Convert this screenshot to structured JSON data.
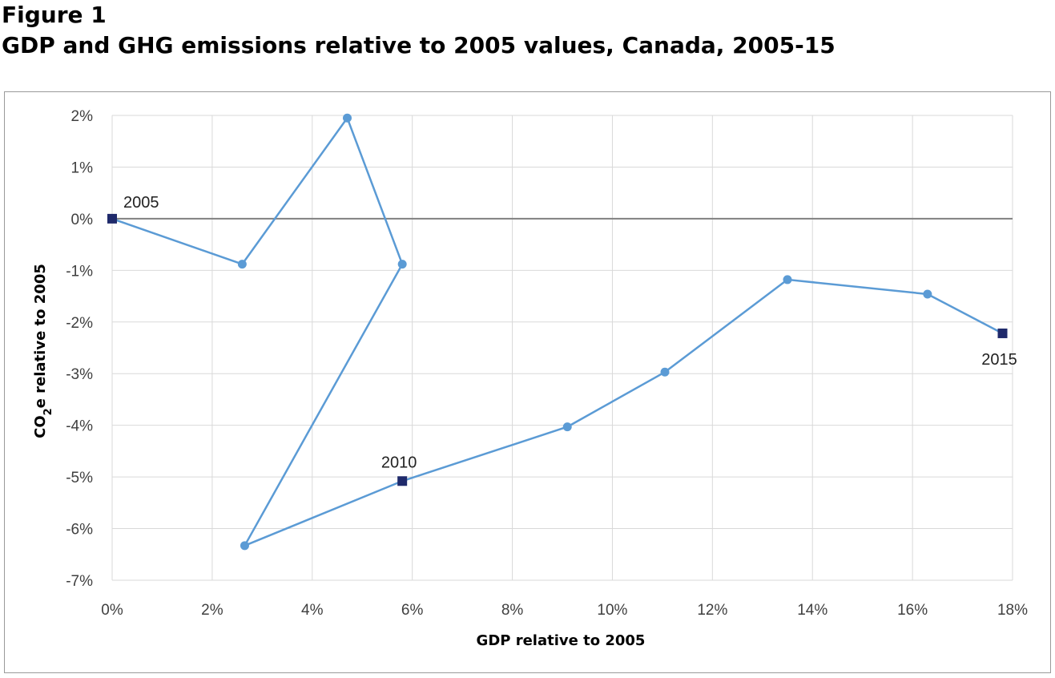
{
  "header": {
    "figure_label": "Figure 1",
    "title": "GDP and GHG emissions relative to 2005 values, Canada, 2005-15"
  },
  "chart_data": {
    "type": "scatter",
    "xlabel": "GDP relative to 2005",
    "ylabel": {
      "pre": "CO",
      "sub": "2",
      "post": "e relative to 2005"
    },
    "xlim": [
      0,
      18
    ],
    "ylim": [
      -7,
      2
    ],
    "xticks": [
      0,
      2,
      4,
      6,
      8,
      10,
      12,
      14,
      16,
      18
    ],
    "yticks": [
      2,
      1,
      0,
      -1,
      -2,
      -3,
      -4,
      -5,
      -6,
      -7
    ],
    "tick_suffix": "%",
    "grid": true,
    "line_color": "#5b9bd5",
    "marker_highlight_color": "#1f2a6b",
    "zero_line_color": "#808080",
    "series": [
      {
        "points": [
          {
            "x": 0.0,
            "y": 0.0,
            "label": "2005",
            "highlight": true
          },
          {
            "x": 2.6,
            "y": -0.88
          },
          {
            "x": 4.7,
            "y": 1.95
          },
          {
            "x": 5.8,
            "y": -0.88
          },
          {
            "x": 2.65,
            "y": -6.33
          },
          {
            "x": 5.8,
            "y": -5.08,
            "label": "2010",
            "highlight": true
          },
          {
            "x": 9.1,
            "y": -4.03
          },
          {
            "x": 11.05,
            "y": -2.97
          },
          {
            "x": 13.5,
            "y": -1.18
          },
          {
            "x": 16.3,
            "y": -1.46
          },
          {
            "x": 17.8,
            "y": -2.22,
            "label": "2015",
            "highlight": true
          }
        ]
      }
    ]
  }
}
